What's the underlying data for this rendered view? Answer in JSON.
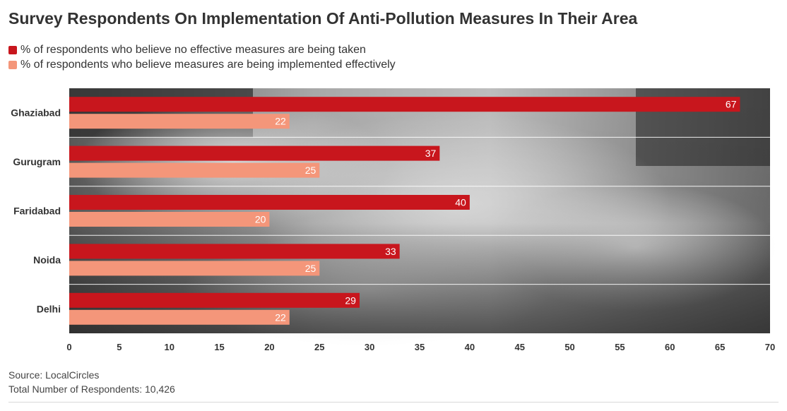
{
  "chart_data": {
    "type": "bar",
    "orientation": "horizontal",
    "title": "Survey Respondents On Implementation Of Anti-Pollution Measures In Their Area",
    "categories": [
      "Ghaziabad",
      "Gurugram",
      "Faridabad",
      "Noida",
      "Delhi"
    ],
    "series": [
      {
        "name": "% of respondents who believe no effective measures are being taken",
        "color": "#c8161d",
        "values": [
          67,
          37,
          40,
          33,
          29
        ]
      },
      {
        "name": "% of respondents who believe measures are being implemented effectively",
        "color": "#f4967a",
        "values": [
          22,
          25,
          20,
          25,
          22
        ]
      }
    ],
    "xlim": [
      0,
      70
    ],
    "xticks": [
      0,
      5,
      10,
      15,
      20,
      25,
      30,
      35,
      40,
      45,
      50,
      55,
      60,
      65,
      70
    ],
    "xlabel": "",
    "ylabel": "",
    "legend_position": "top-left",
    "grid": false,
    "background": "grayscale photo of smoke over burning field"
  },
  "footer": {
    "source": "Source: LocalCircles",
    "respondents": "Total Number of Respondents: 10,426"
  }
}
